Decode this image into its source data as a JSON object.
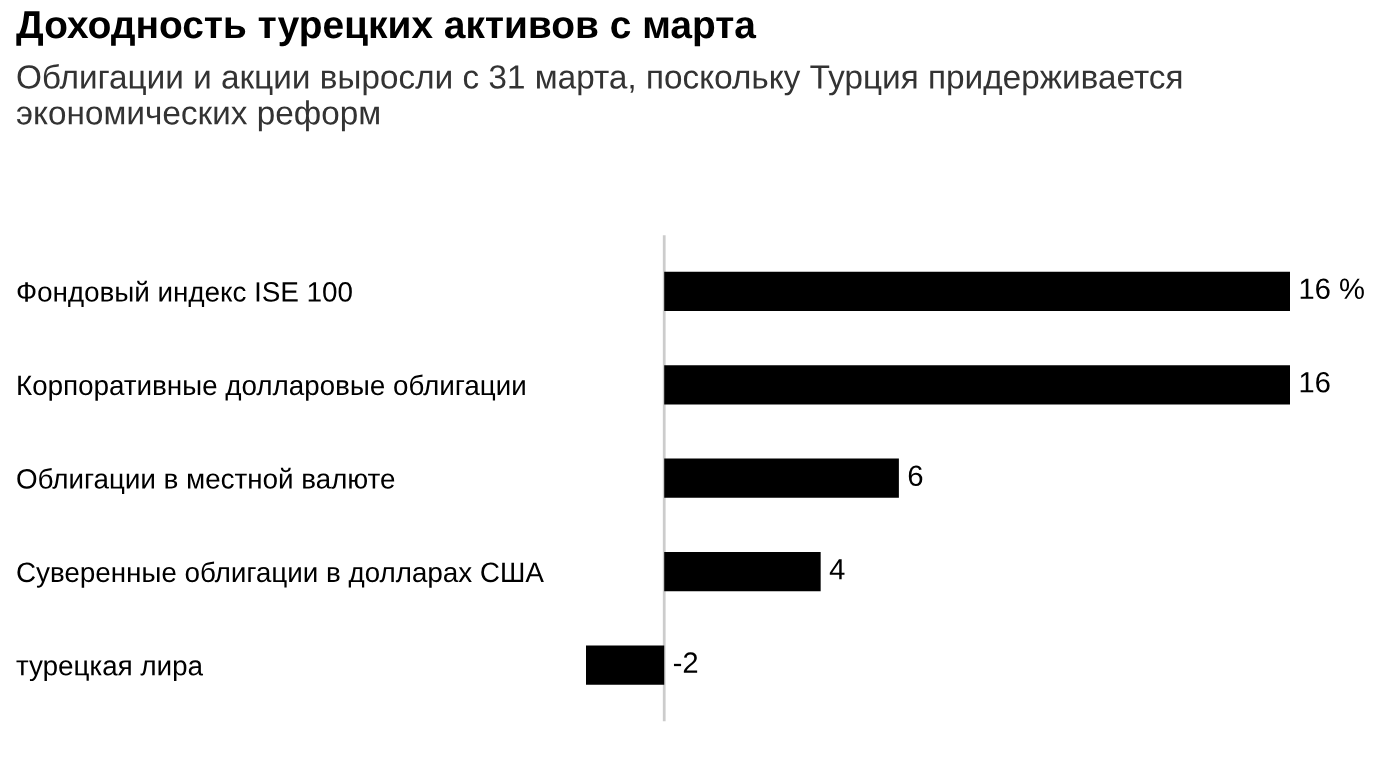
{
  "chart_data": {
    "type": "bar",
    "orientation": "horizontal",
    "title": "Доходность турецких активов с марта",
    "subtitle": "Облигации и акции выросли с 31 марта, поскольку Турция придерживается экономических реформ",
    "categories": [
      "Фондовый индекс ISE 100",
      "Корпоративные долларовые облигации",
      "Облигации в местной валюте",
      "Суверенные облигации в долларах США",
      "турецкая лира"
    ],
    "values": [
      16,
      16,
      6,
      4,
      -2
    ],
    "value_labels": [
      "16 %",
      "16",
      "6",
      "4",
      "-2"
    ],
    "color": "#000000",
    "grid": false,
    "legend": false
  }
}
